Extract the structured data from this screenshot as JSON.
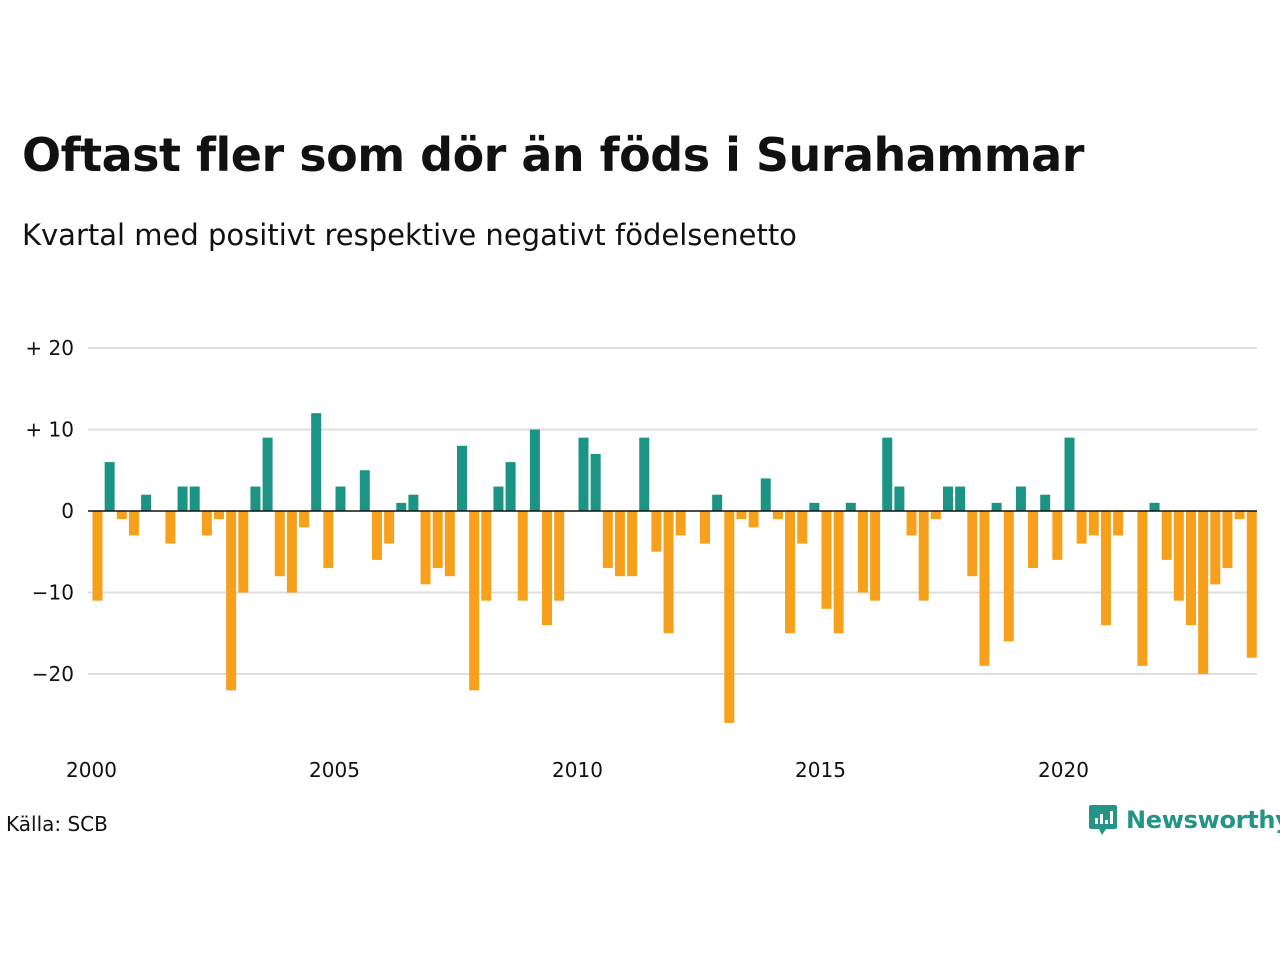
{
  "title": "Oftast fler som dör än föds i Surahammar",
  "subtitle": "Kvartal med positivt respektive negativt födelsenetto",
  "source": "Källa: SCB",
  "brand": {
    "name": "Newsworthy",
    "icon": "newsworthy-logo-icon"
  },
  "colors": {
    "positive": "#1b9485",
    "negative": "#f7a01c",
    "grid": "#dddddd",
    "zero": "#111111"
  },
  "chart_data": {
    "type": "bar",
    "title": "Oftast fler som dör än föds i Surahammar",
    "subtitle": "Kvartal med positivt respektive negativt födelsenetto",
    "xlabel": "",
    "ylabel": "",
    "start_year": 2000,
    "xlim": [
      2000,
      2024.25
    ],
    "ylim": [
      -28,
      22
    ],
    "yticks": [
      20,
      10,
      0,
      -10,
      -20
    ],
    "ytick_labels": [
      "+ 20",
      "+ 10",
      "0",
      "−10",
      "−20"
    ],
    "xticks": [
      2000,
      2005,
      2010,
      2015,
      2020
    ],
    "xtick_labels": [
      "2000",
      "2005",
      "2010",
      "2015",
      "2020"
    ],
    "grid": true,
    "legend": "none",
    "values": [
      -11,
      6,
      -1,
      -3,
      2,
      0,
      -4,
      3,
      3,
      -3,
      -1,
      -22,
      -10,
      3,
      9,
      -8,
      -10,
      -2,
      12,
      -7,
      3,
      0,
      5,
      -6,
      -4,
      1,
      2,
      -9,
      -7,
      -8,
      8,
      -22,
      -11,
      3,
      6,
      -11,
      10,
      -14,
      -11,
      0,
      9,
      7,
      -7,
      -8,
      -8,
      9,
      -5,
      -15,
      -3,
      0,
      -4,
      2,
      -26,
      -1,
      -2,
      4,
      -1,
      -15,
      -4,
      1,
      -12,
      -15,
      1,
      -10,
      -11,
      9,
      3,
      -3,
      -11,
      -1,
      3,
      3,
      -8,
      -19,
      1,
      -16,
      3,
      -7,
      2,
      -6,
      9,
      -4,
      -3,
      -14,
      -3,
      0,
      -19,
      1,
      -6,
      -11,
      -14,
      -20,
      -9,
      -7,
      -1,
      -18
    ]
  }
}
